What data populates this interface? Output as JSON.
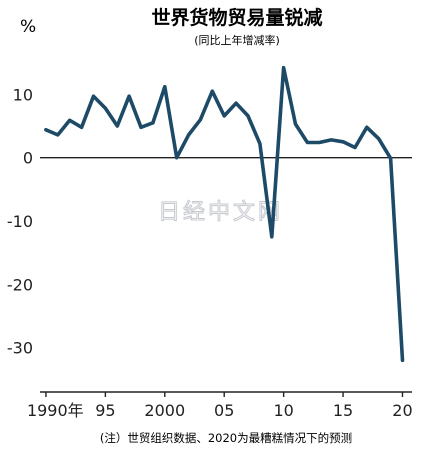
{
  "chart_data": {
    "type": "line",
    "title": "世界货物贸易量锐减",
    "subtitle": "(同比上年增减率)",
    "ylabel": "%",
    "footnote": "(注）世贸组织数据、2020为最糟糕情况下的预测",
    "watermark": "日经中文网",
    "ylim": [
      -37,
      17
    ],
    "xlim": [
      1989.5,
      2020.8
    ],
    "yticks": [
      {
        "value": 10,
        "label": "10"
      },
      {
        "value": 0,
        "label": "0"
      },
      {
        "value": -10,
        "label": "-10"
      },
      {
        "value": -20,
        "label": "-20"
      },
      {
        "value": -30,
        "label": "-30"
      }
    ],
    "xticks": [
      {
        "value": 1990,
        "label": "1990年"
      },
      {
        "value": 1995,
        "label": "95"
      },
      {
        "value": 2000,
        "label": "2000"
      },
      {
        "value": 2005,
        "label": "05"
      },
      {
        "value": 2010,
        "label": "10"
      },
      {
        "value": 2015,
        "label": "15"
      },
      {
        "value": 2020,
        "label": "20"
      }
    ],
    "line_color": "#1d4a66",
    "series": [
      {
        "x": [
          1990,
          1991,
          1992,
          1993,
          1994,
          1995,
          1996,
          1997,
          1998,
          1999,
          2000,
          2001,
          2002,
          2003,
          2004,
          2005,
          2006,
          2007,
          2008,
          2009,
          2010,
          2011,
          2012,
          2013,
          2014,
          2015,
          2016,
          2017,
          2018,
          2019,
          2020
        ],
        "y": [
          4.4,
          3.6,
          5.9,
          4.8,
          9.7,
          7.8,
          5.0,
          9.7,
          4.8,
          5.5,
          11.2,
          0.0,
          3.6,
          6.0,
          10.5,
          6.6,
          8.6,
          6.6,
          2.2,
          -12.5,
          14.2,
          5.3,
          2.4,
          2.4,
          2.8,
          2.5,
          1.6,
          4.8,
          3.0,
          -0.1,
          -32.0
        ]
      }
    ]
  }
}
